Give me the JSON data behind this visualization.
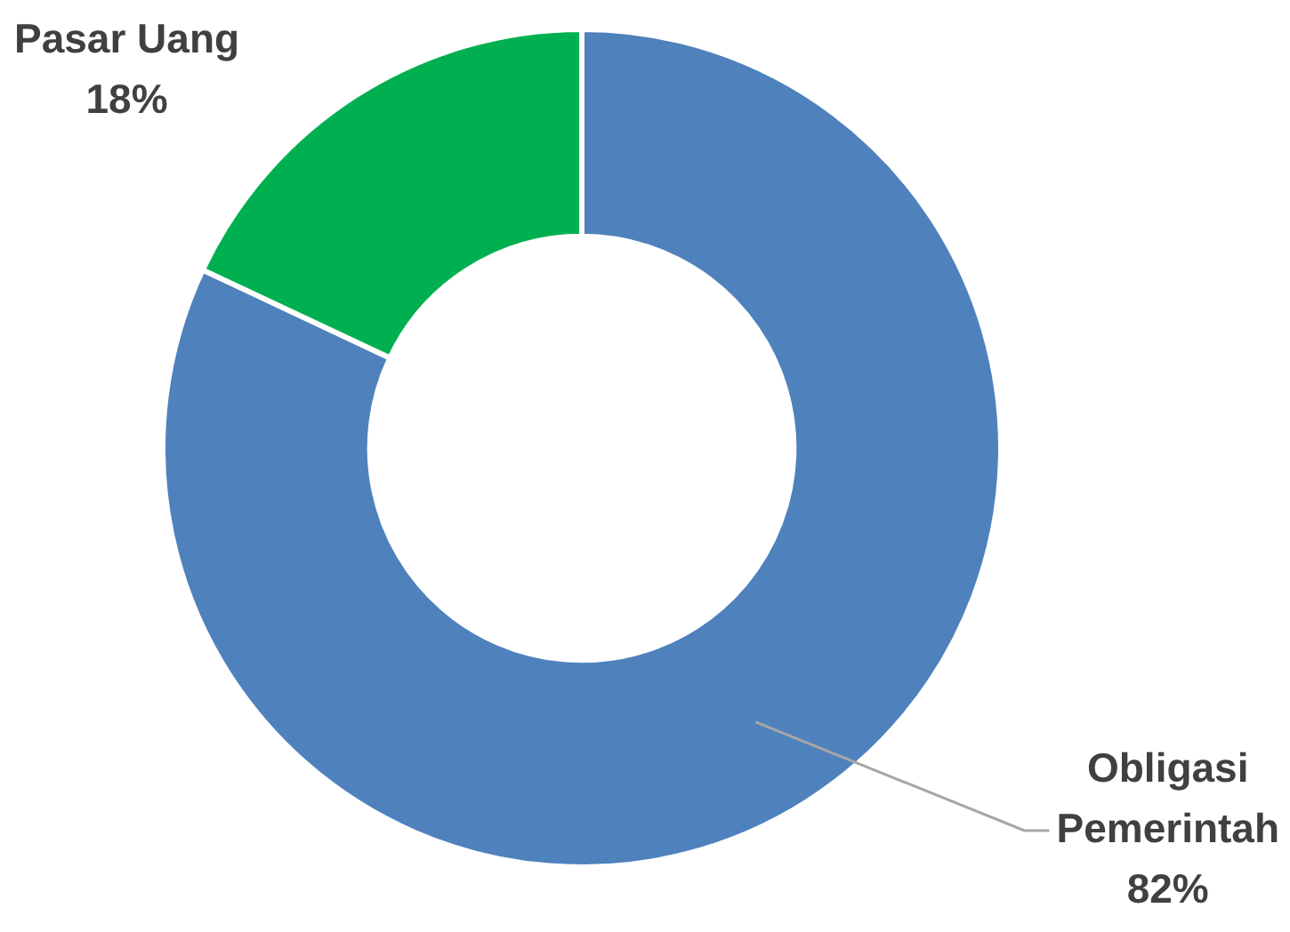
{
  "chart_data": {
    "type": "donut",
    "categories": [
      "Obligasi Pemerintah",
      "Pasar Uang"
    ],
    "values": [
      82,
      18
    ],
    "colors": [
      "#4f81bd",
      "#00b050"
    ],
    "value_labels": [
      "82%",
      "18%"
    ],
    "legend": false
  }
}
